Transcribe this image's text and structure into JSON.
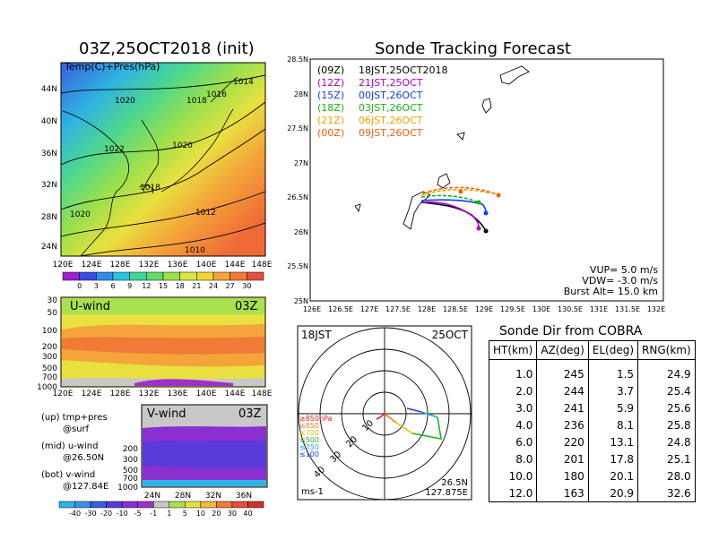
{
  "left_map": {
    "title": "03Z,25OCT2018 (init)",
    "field_label": "Temp(C)+Pres(hPa)",
    "lat_labels": [
      "44N",
      "40N",
      "36N",
      "32N",
      "28N",
      "24N"
    ],
    "lon_labels": [
      "120E",
      "124E",
      "128E",
      "132E",
      "136E",
      "140E",
      "144E",
      "148E"
    ],
    "pressure_labels": [
      "1020",
      "1018",
      "1016",
      "1014",
      "1022",
      "1020",
      "1018",
      "1020",
      "1012",
      "1010"
    ],
    "colorbar_labels": [
      "0",
      "3",
      "6",
      "9",
      "12",
      "15",
      "18",
      "21",
      "24",
      "27",
      "30"
    ],
    "colorbar_colors": [
      "#9b1fd0",
      "#3a4be0",
      "#2f8fe8",
      "#2cc2e0",
      "#3fd4a0",
      "#64d86a",
      "#9be04d",
      "#d7e640",
      "#f2d43a",
      "#f4a43a",
      "#f07a36",
      "#e5503a"
    ]
  },
  "u_wind": {
    "label": "U-wind",
    "time": "03Z",
    "p_labels": [
      "30",
      "50",
      "100",
      "200",
      "300",
      "500",
      "700",
      "1000"
    ],
    "lon_labels": [
      "120E",
      "124E",
      "128E",
      "132E",
      "136E",
      "140E",
      "144E",
      "148E"
    ]
  },
  "v_wind": {
    "label": "V-wind",
    "time": "03Z",
    "p_labels": [
      "200",
      "300",
      "500",
      "700",
      "1000"
    ],
    "lat_labels": [
      "24N",
      "28N",
      "32N",
      "36N"
    ]
  },
  "notes": [
    {
      "a": "(up) tmp+pres",
      "b": "@surf"
    },
    {
      "a": "(mid) u-wind",
      "b": "@26.50N"
    },
    {
      "a": "(bot) v-wind",
      "b": "@127.84E"
    }
  ],
  "wind_colorbar": {
    "labels": [
      "-40",
      "-30",
      "-20",
      "-10",
      "-5",
      "-1",
      "1",
      "5",
      "10",
      "20",
      "30",
      "40"
    ],
    "colors": [
      "#2fb4e8",
      "#3a8fe8",
      "#3a5ee0",
      "#5a3ad8",
      "#8a30d0",
      "#a030c8",
      "#c8c8c8",
      "#a8e050",
      "#e8e040",
      "#f4b83a",
      "#f07a36",
      "#e5503a",
      "#d03030"
    ]
  },
  "forecast": {
    "title": "Sonde Tracking Forecast",
    "lat_labels": [
      "28.5N",
      "28N",
      "27.5N",
      "27N",
      "26.5N",
      "26N",
      "25.5N",
      "25N"
    ],
    "lon_labels": [
      "126E",
      "126.5E",
      "127E",
      "127.5E",
      "128E",
      "128.5E",
      "129E",
      "129.5E",
      "130E",
      "130.5E",
      "131E",
      "131.5E",
      "132E"
    ],
    "legend": [
      {
        "z": "(09Z)",
        "t": "18JST,25OCT2018",
        "color": "#000000"
      },
      {
        "z": "(12Z)",
        "t": "21JST,25OCT",
        "color": "#b000c8"
      },
      {
        "z": "(15Z)",
        "t": "00JST,26OCT",
        "color": "#1040e8"
      },
      {
        "z": "(18Z)",
        "t": "03JST,26OCT",
        "color": "#18b018"
      },
      {
        "z": "(21Z)",
        "t": "06JST,26OCT",
        "color": "#f0a000"
      },
      {
        "z": "(00Z)",
        "t": "09JST,26OCT",
        "color": "#f06010"
      }
    ],
    "params": [
      "VUP= 5.0 m/s",
      "VDW= -3.0 m/s",
      "Burst Alt= 15.0 km"
    ]
  },
  "hodograph": {
    "time_left": "18JST",
    "time_right": "25OCT",
    "ring_labels": [
      "10",
      "20",
      "30",
      "40"
    ],
    "units": "ms-1",
    "loc_lat": "26.5N",
    "loc_lon": "127.875E",
    "levels": [
      {
        "text": "≥850hPa",
        "color": "#e02020"
      },
      {
        "text": "≤850",
        "color": "#f07a20"
      },
      {
        "text": "≤700",
        "color": "#e8c000"
      },
      {
        "text": "≤500",
        "color": "#20b020"
      },
      {
        "text": "≤250",
        "color": "#20a0e0"
      },
      {
        "text": "≤100",
        "color": "#2040e0"
      }
    ]
  },
  "sonde_dir": {
    "title": "Sonde Dir from COBRA",
    "headers": [
      "HT(km)",
      "AZ(deg)",
      "EL(deg)",
      "RNG(km)"
    ],
    "rows": [
      [
        "1.0",
        "245",
        "1.5",
        "24.9"
      ],
      [
        "2.0",
        "244",
        "3.7",
        "25.4"
      ],
      [
        "3.0",
        "241",
        "5.9",
        "25.6"
      ],
      [
        "4.0",
        "236",
        "8.1",
        "25.8"
      ],
      [
        "6.0",
        "220",
        "13.1",
        "24.8"
      ],
      [
        "8.0",
        "201",
        "17.8",
        "25.1"
      ],
      [
        "10.0",
        "180",
        "20.1",
        "28.0"
      ],
      [
        "12.0",
        "163",
        "20.9",
        "32.6"
      ]
    ]
  }
}
